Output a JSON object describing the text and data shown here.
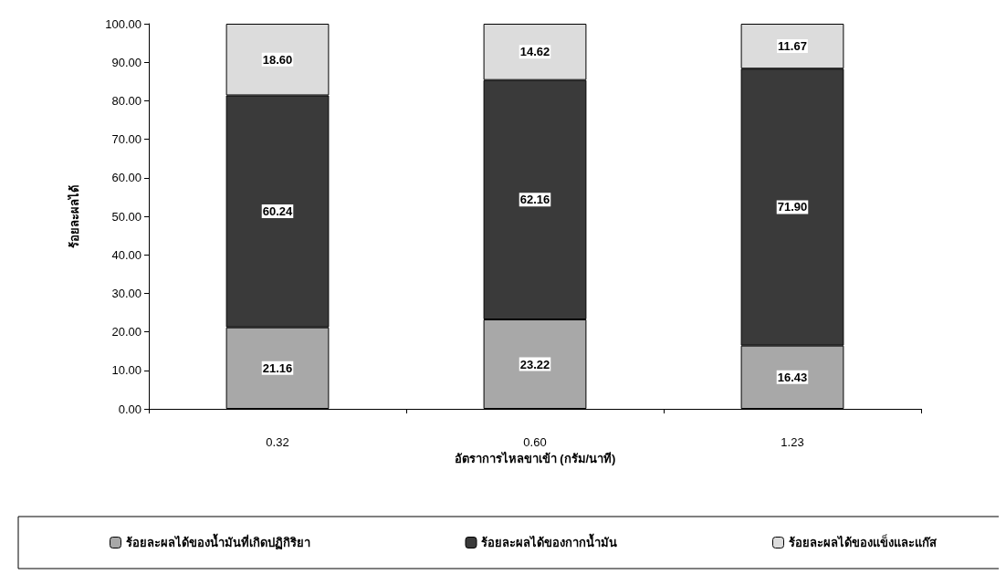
{
  "chart_data": {
    "type": "bar",
    "stacked": true,
    "xlabel": "อัตราการไหลขาเข้า (กรัม/นาที)",
    "ylabel": "ร้อยละผลได้",
    "categories": [
      "0.32",
      "0.60",
      "1.23"
    ],
    "series": [
      {
        "name": "ร้อยละผลได้ของน้ำมันที่เกิดปฏิกิริยา",
        "color": "#a8a8a8",
        "values": [
          21.16,
          23.22,
          16.43
        ],
        "value_labels": [
          "21.16",
          "23.22",
          "16.43"
        ]
      },
      {
        "name": "ร้อยละผลได้ของกากน้ำมัน",
        "color": "#3a3a3a",
        "values": [
          60.24,
          62.16,
          71.9
        ],
        "value_labels": [
          "60.24",
          "62.16",
          "71.90"
        ]
      },
      {
        "name": "ร้อยละผลได้ของแข็งและแก๊ส",
        "color": "#dcdcdc",
        "values": [
          18.6,
          14.62,
          11.67
        ],
        "value_labels": [
          "18.60",
          "14.62",
          "11.67"
        ]
      }
    ],
    "ylim": [
      0,
      100
    ],
    "yticks": [
      {
        "value": 0,
        "label": "0.00"
      },
      {
        "value": 10,
        "label": "10.00"
      },
      {
        "value": 20,
        "label": "20.00"
      },
      {
        "value": 30,
        "label": "30.00"
      },
      {
        "value": 40,
        "label": "40.00"
      },
      {
        "value": 50,
        "label": "50.00"
      },
      {
        "value": 60,
        "label": "60.00"
      },
      {
        "value": 70,
        "label": "70.00"
      },
      {
        "value": 80,
        "label": "80.00"
      },
      {
        "value": 90,
        "label": "90.00"
      },
      {
        "value": 100,
        "label": "100.00"
      }
    ],
    "grid": false,
    "legend": "bottom"
  }
}
